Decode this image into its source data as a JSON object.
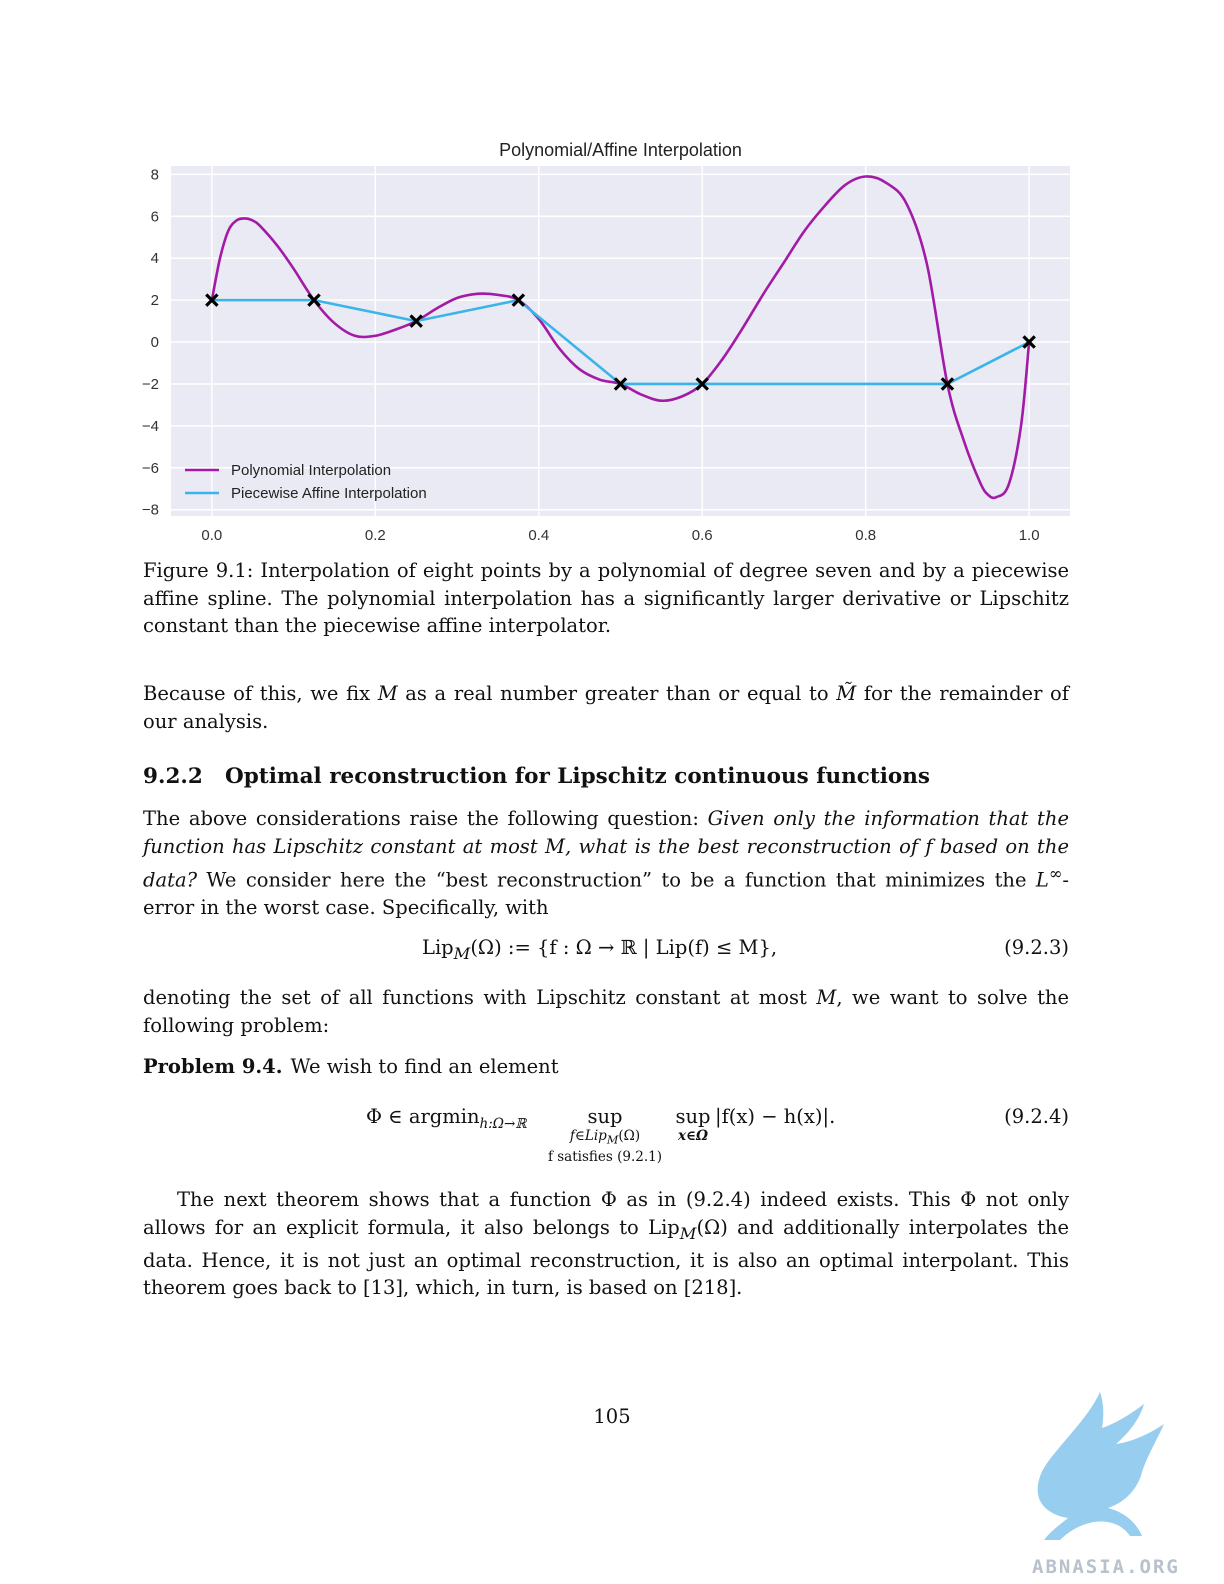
{
  "chart_data": {
    "type": "line",
    "title": "Polynomial/Affine Interpolation",
    "xlim": [
      -0.05,
      1.05
    ],
    "ylim": [
      -8.3,
      8.4
    ],
    "xticks": [
      "0.0",
      "0.2",
      "0.4",
      "0.6",
      "0.8",
      "1.0"
    ],
    "xtick_values": [
      0.0,
      0.2,
      0.4,
      0.6,
      0.8,
      1.0
    ],
    "yticks": [
      "8",
      "6",
      "4",
      "2",
      "0",
      "−2",
      "−4",
      "−6",
      "−8"
    ],
    "ytick_values": [
      8,
      6,
      4,
      2,
      0,
      -2,
      -4,
      -6,
      -8
    ],
    "grid": true,
    "legend_position": "lower-left",
    "data_points": {
      "x": [
        0.0,
        0.125,
        0.25,
        0.375,
        0.5,
        0.6,
        0.9,
        1.0
      ],
      "y": [
        2,
        2,
        1,
        2,
        -2,
        -2,
        -2,
        0
      ]
    },
    "series": [
      {
        "name": "Polynomial Interpolation",
        "color": "#a31aa7",
        "x": [
          0.0,
          0.01,
          0.02,
          0.03,
          0.04,
          0.05,
          0.06,
          0.08,
          0.1,
          0.125,
          0.15,
          0.175,
          0.2,
          0.225,
          0.25,
          0.275,
          0.3,
          0.325,
          0.35,
          0.375,
          0.4,
          0.425,
          0.45,
          0.475,
          0.5,
          0.525,
          0.55,
          0.575,
          0.6,
          0.625,
          0.65,
          0.675,
          0.7,
          0.725,
          0.75,
          0.775,
          0.8,
          0.825,
          0.85,
          0.875,
          0.9,
          0.92,
          0.94,
          0.95,
          0.96,
          0.975,
          0.99,
          1.0
        ],
        "y": [
          2.0,
          4.0,
          5.3,
          5.8,
          5.9,
          5.8,
          5.5,
          4.6,
          3.5,
          2.0,
          0.9,
          0.3,
          0.3,
          0.6,
          1.0,
          1.6,
          2.1,
          2.3,
          2.25,
          2.0,
          1.1,
          -0.3,
          -1.3,
          -1.8,
          -2.0,
          -2.5,
          -2.8,
          -2.6,
          -2.0,
          -0.8,
          0.7,
          2.3,
          3.8,
          5.3,
          6.5,
          7.5,
          7.9,
          7.6,
          6.6,
          3.7,
          -2.0,
          -4.7,
          -6.7,
          -7.3,
          -7.4,
          -6.8,
          -4.0,
          0.0
        ]
      },
      {
        "name": "Piecewise Affine Interpolation",
        "color": "#3bb4ec",
        "x": [
          0.0,
          0.125,
          0.25,
          0.375,
          0.5,
          0.6,
          0.9,
          1.0
        ],
        "y": [
          2,
          2,
          1,
          2,
          -2,
          -2,
          -2,
          0
        ]
      }
    ]
  },
  "caption": "Figure 9.1: Interpolation of eight points by a polynomial of degree seven and by a piecewise affine spline. The polynomial interpolation has a significantly larger derivative or Lipschitz constant than the piecewise affine interpolator.",
  "para1": {
    "a": "Because of this, we fix ",
    "m1": "M",
    "b": " as a real number greater than or equal to ",
    "m2": "M̃",
    "c": " for the remainder of our analysis."
  },
  "section": {
    "number": "9.2.2",
    "title": "Optimal reconstruction for Lipschitz continuous functions"
  },
  "para2": {
    "a": "The above considerations raise the following question: ",
    "italic1": "Given only the information that the function has Lipschitz constant at most ",
    "m1": "M",
    "italic2": ", what is the best reconstruction of ",
    "m2": "f",
    "italic3": " based on the data?",
    "b": " We consider here the “best reconstruction” to be a function that minimizes the ",
    "m3": "L",
    "sup": "∞",
    "c": "-error in the worst case. Specifically, with"
  },
  "eq1": {
    "lip": "Lip",
    "sub": "M",
    "body": "(Ω) := {f : Ω → ℝ | Lip(f) ≤ M},",
    "label": "(9.2.3)"
  },
  "para3": {
    "a": "denoting the set of all functions with Lipschitz constant at most ",
    "m1": "M",
    "b": ", we want to solve the following problem:"
  },
  "problem": {
    "label": "Problem 9.4.",
    "text": "We wish to find an element"
  },
  "eq2": {
    "lhs": "Φ ∈ argmin",
    "lhs_sub": "h:Ω→ℝ",
    "sup1": "sup",
    "sup1_sub1": "f∈Lip",
    "sup1_sub1_m": "M",
    "sup1_sub1_tail": "(Ω)",
    "sup1_sub2": "f satisfies (9.2.1)",
    "sup2": "sup",
    "sup2_sub": "x∈Ω",
    "rhs": "|f(x) − h(x)|.",
    "label": "(9.2.4)"
  },
  "para4": {
    "a": "The next theorem shows that a function Φ as in (9.2.4) indeed exists. This Φ not only allows for an explicit formula, it also belongs to Lip",
    "sub": "M",
    "b": "(Ω) and additionally interpolates the data. Hence, it is not just an optimal reconstruction, it is also an optimal interpolant. This theorem goes back to [13], which, in turn, is based on [218]."
  },
  "page_number": "105",
  "watermark": {
    "text": "ABNASIA.ORG",
    "color": "#8cc8ec"
  }
}
